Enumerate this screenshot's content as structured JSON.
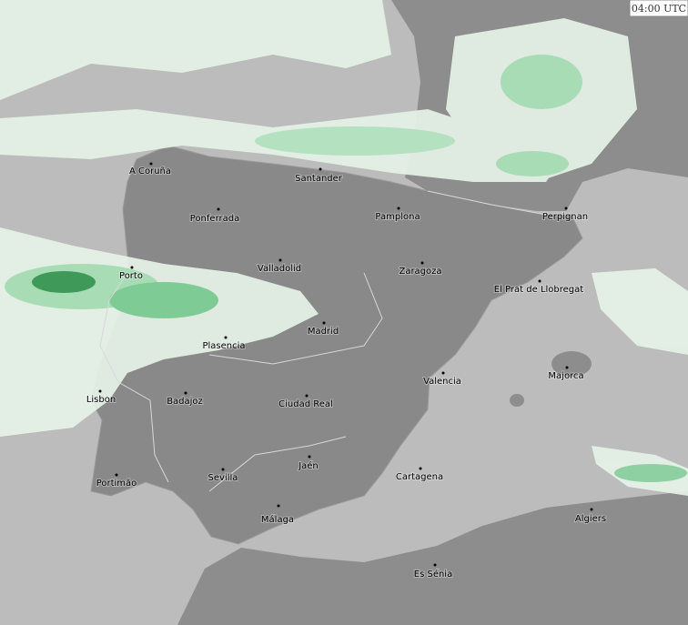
{
  "time_label": "04:00 UTC",
  "cities": [
    "A Coruña",
    "Santander",
    "Ponferrada",
    "Pamplona",
    "Perpignan",
    "Valladolid",
    "Zaragoza",
    "Porto",
    "El Prat de Llobregat",
    "Madrid",
    "Plasencia",
    "Valencia",
    "Majorca",
    "Lisbon",
    "Badajoz",
    "Ciudad Real",
    "Jaén",
    "Portimão",
    "Sevilla",
    "Cartagena",
    "Málaga",
    "Algiers",
    "Es Sénia"
  ]
}
